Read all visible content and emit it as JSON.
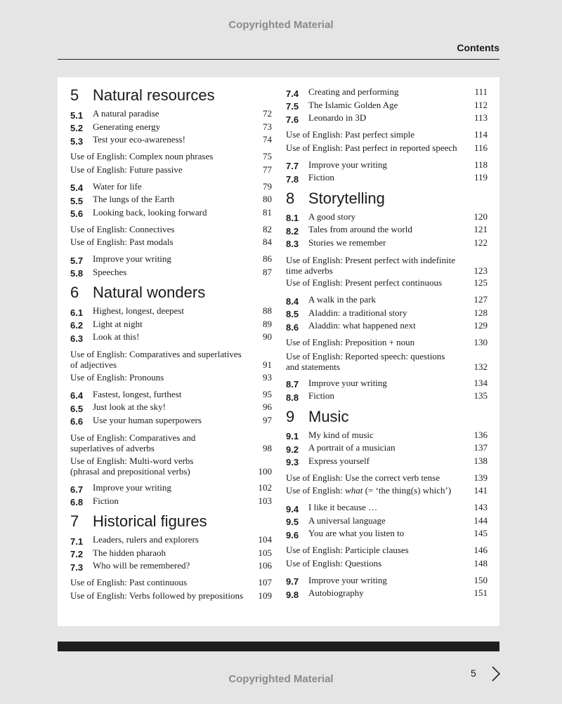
{
  "header": {
    "watermark": "Copyrighted Material",
    "section": "Contents"
  },
  "columns": [
    {
      "blocks": [
        {
          "heading": {
            "number": "5",
            "title": "Natural resources"
          }
        },
        {
          "items": [
            {
              "number": "5.1",
              "title": "A natural paradise",
              "page": 72
            },
            {
              "number": "5.2",
              "title": "Generating energy",
              "page": 73
            },
            {
              "number": "5.3",
              "title": "Test your eco-awareness!",
              "page": 74
            }
          ]
        },
        {
          "items": [
            {
              "text": "Use of English: Complex noun phrases",
              "page": 75
            },
            {
              "text": "Use of English: Future passive",
              "page": 77
            }
          ]
        },
        {
          "items": [
            {
              "number": "5.4",
              "title": "Water for life",
              "page": 79
            },
            {
              "number": "5.5",
              "title": "The lungs of the Earth",
              "page": 80
            },
            {
              "number": "5.6",
              "title": "Looking back, looking forward",
              "page": 81
            }
          ]
        },
        {
          "items": [
            {
              "text": "Use of English: Connectives",
              "page": 82
            },
            {
              "text": "Use of English: Past modals",
              "page": 84
            }
          ]
        },
        {
          "items": [
            {
              "number": "5.7",
              "title": "Improve your writing",
              "page": 86
            },
            {
              "number": "5.8",
              "title": "Speeches",
              "page": 87
            }
          ]
        },
        {
          "heading": {
            "number": "6",
            "title": "Natural wonders"
          }
        },
        {
          "items": [
            {
              "number": "6.1",
              "title": "Highest, longest, deepest",
              "page": 88
            },
            {
              "number": "6.2",
              "title": "Light at night",
              "page": 89
            },
            {
              "number": "6.3",
              "title": "Look at this!",
              "page": 90
            }
          ]
        },
        {
          "items": [
            {
              "lines": [
                "Use of English: Comparatives and superlatives",
                "of adjectives"
              ],
              "page": 91
            },
            {
              "text": "Use of English: Pronouns",
              "page": 93
            }
          ]
        },
        {
          "items": [
            {
              "number": "6.4",
              "title": "Fastest, longest, furthest",
              "page": 95
            },
            {
              "number": "6.5",
              "title": "Just look at the sky!",
              "page": 96
            },
            {
              "number": "6.6",
              "title": "Use your human superpowers",
              "page": 97
            }
          ]
        },
        {
          "items": [
            {
              "lines": [
                "Use of English: Comparatives and",
                "superlatives of adverbs"
              ],
              "page": 98
            },
            {
              "lines": [
                "Use of English: Multi-word verbs",
                "(phrasal and prepositional verbs)"
              ],
              "page": 100
            }
          ]
        },
        {
          "items": [
            {
              "number": "6.7",
              "title": "Improve your writing",
              "page": 102
            },
            {
              "number": "6.8",
              "title": "Fiction",
              "page": 103
            }
          ]
        },
        {
          "heading": {
            "number": "7",
            "title": "Historical figures"
          }
        },
        {
          "items": [
            {
              "number": "7.1",
              "title": "Leaders, rulers and explorers",
              "page": 104
            },
            {
              "number": "7.2",
              "title": "The hidden pharaoh",
              "page": 105
            },
            {
              "number": "7.3",
              "title": "Who will be remembered?",
              "page": 106
            }
          ]
        },
        {
          "items": [
            {
              "text": "Use of English: Past continuous",
              "page": 107
            },
            {
              "text": "Use of English: Verbs followed by prepositions",
              "page": 109
            }
          ]
        }
      ]
    },
    {
      "blocks": [
        {
          "items": [
            {
              "number": "7.4",
              "title": "Creating and performing",
              "page": 111
            },
            {
              "number": "7.5",
              "title": "The Islamic Golden Age",
              "page": 112
            },
            {
              "number": "7.6",
              "title": "Leonardo in 3D",
              "page": 113
            }
          ]
        },
        {
          "items": [
            {
              "text": "Use of English: Past perfect simple",
              "page": 114
            },
            {
              "text": "Use of English: Past perfect in reported speech",
              "page": 116
            }
          ]
        },
        {
          "items": [
            {
              "number": "7.7",
              "title": "Improve your writing",
              "page": 118
            },
            {
              "number": "7.8",
              "title": "Fiction",
              "page": 119
            }
          ]
        },
        {
          "heading": {
            "number": "8",
            "title": "Storytelling"
          }
        },
        {
          "items": [
            {
              "number": "8.1",
              "title": "A good story",
              "page": 120
            },
            {
              "number": "8.2",
              "title": "Tales from around the world",
              "page": 121
            },
            {
              "number": "8.3",
              "title": "Stories we remember",
              "page": 122
            }
          ]
        },
        {
          "items": [
            {
              "lines": [
                "Use of English: Present perfect with indefinite",
                "time adverbs"
              ],
              "page": 123
            },
            {
              "text": "Use of English: Present perfect continuous",
              "page": 125
            }
          ]
        },
        {
          "items": [
            {
              "number": "8.4",
              "title": "A walk in the park",
              "page": 127
            },
            {
              "number": "8.5",
              "title": "Aladdin: a traditional story",
              "page": 128
            },
            {
              "number": "8.6",
              "title": "Aladdin: what happened next",
              "page": 129
            }
          ]
        },
        {
          "items": [
            {
              "text": "Use of English: Preposition + noun",
              "page": 130
            },
            {
              "lines": [
                "Use of English: Reported speech: questions",
                "and statements"
              ],
              "page": 132
            }
          ]
        },
        {
          "items": [
            {
              "number": "8.7",
              "title": "Improve your writing",
              "page": 134
            },
            {
              "number": "8.8",
              "title": "Fiction",
              "page": 135
            }
          ]
        },
        {
          "heading": {
            "number": "9",
            "title": "Music"
          }
        },
        {
          "items": [
            {
              "number": "9.1",
              "title": "My kind of music",
              "page": 136
            },
            {
              "number": "9.2",
              "title": "A portrait of a musician",
              "page": 137
            },
            {
              "number": "9.3",
              "title": "Express yourself",
              "page": 138
            }
          ]
        },
        {
          "items": [
            {
              "text": "Use of English: Use the correct verb tense",
              "page": 139
            },
            {
              "text": "Use of English: ",
              "em": "what",
              "text_after": " (= ‘the thing(s) which’)",
              "page": 141
            }
          ]
        },
        {
          "items": [
            {
              "number": "9.4",
              "title": "I like it because …",
              "page": 143
            },
            {
              "number": "9.5",
              "title": "A universal language",
              "page": 144
            },
            {
              "number": "9.6",
              "title": "You are what you listen to",
              "page": 145
            }
          ]
        },
        {
          "items": [
            {
              "text": "Use of English: Participle clauses",
              "page": 146
            },
            {
              "text": "Use of English: Questions",
              "page": 148
            }
          ]
        },
        {
          "items": [
            {
              "number": "9.7",
              "title": "Improve your writing",
              "page": 150
            },
            {
              "number": "9.8",
              "title": "Autobiography",
              "page": 151
            }
          ]
        }
      ]
    }
  ],
  "footer": {
    "page_number": 5,
    "watermark": "Copyrighted Material"
  }
}
